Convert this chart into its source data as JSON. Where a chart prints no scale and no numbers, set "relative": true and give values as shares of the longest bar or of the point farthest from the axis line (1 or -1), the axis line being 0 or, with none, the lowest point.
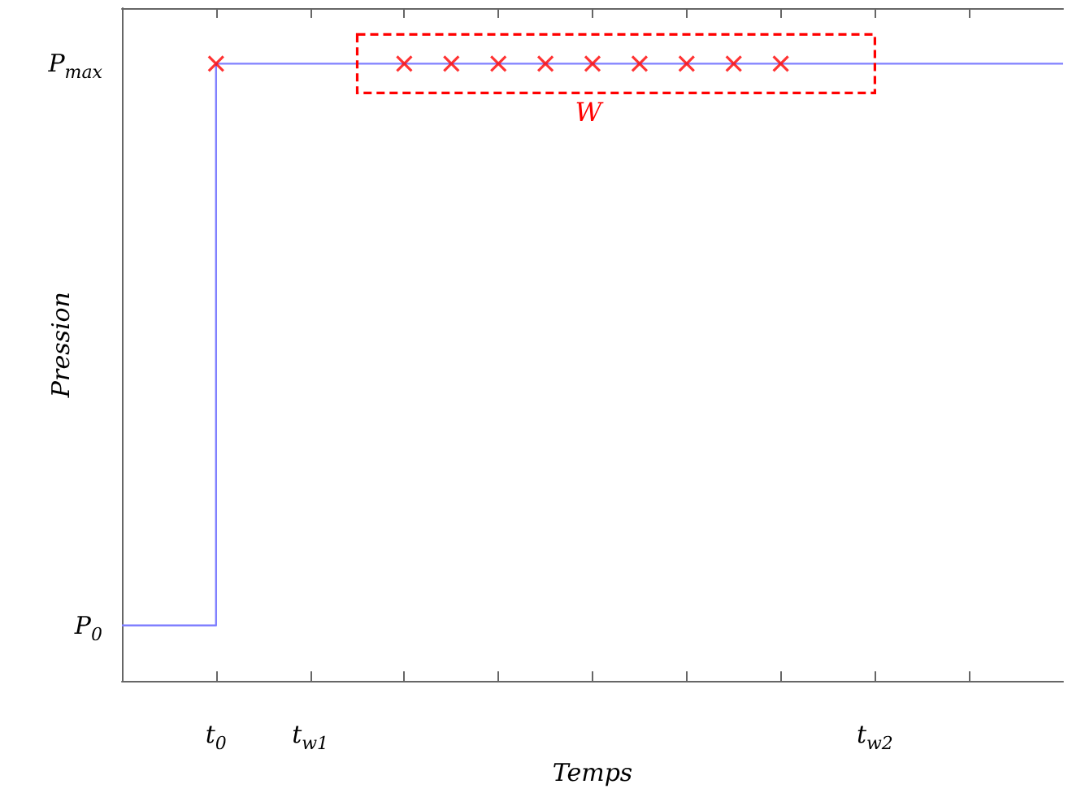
{
  "chart_data": {
    "type": "step",
    "xlabel": "Temps",
    "ylabel": "Pression",
    "relative": true,
    "categories": [
      null,
      null,
      "t$_{0}$",
      null,
      "t$_{w1}$",
      null,
      null,
      null,
      null,
      null,
      null,
      null,
      null,
      null,
      null,
      null,
      "t$_{w2}$",
      null,
      null,
      null,
      null
    ],
    "series": [
      {
        "color": "#8080ff",
        "values": [
          0.09,
          0.09,
          1,
          1,
          1,
          1,
          1,
          1,
          1,
          1,
          1,
          1,
          1,
          1,
          1,
          1,
          1,
          1,
          1,
          1,
          1
        ],
        "marker": "none"
      },
      {
        "type": "scatter",
        "color": "#ff0000",
        "marker": "cross",
        "values": [
          null,
          null,
          1,
          null,
          null,
          null,
          1,
          1,
          1,
          1,
          1,
          1,
          1,
          1,
          1,
          null,
          null,
          null,
          null,
          null,
          null
        ]
      }
    ],
    "annotations": [
      "P$_{0}$",
      "P$_{max}$",
      "W"
    ],
    "grid": false
  }
}
